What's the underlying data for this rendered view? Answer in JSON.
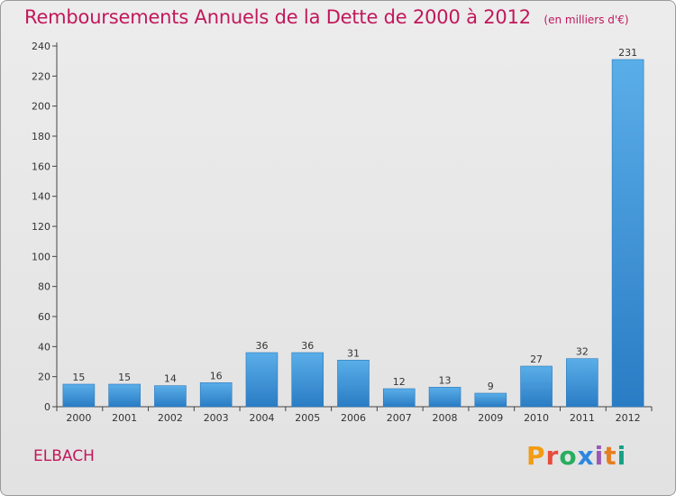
{
  "header": {
    "title": "Remboursements Annuels de la Dette de 2000 à 2012",
    "unit": "(en milliers d'€)"
  },
  "commune": "ELBACH",
  "brand": {
    "text": "Proxiti",
    "colors": [
      "#f39c12",
      "#e74c3c",
      "#27ae60",
      "#2e86de",
      "#9b59b6",
      "#e67e22",
      "#16a085"
    ]
  },
  "colors": {
    "bar_light": "#5aaee8",
    "bar_dark": "#2a7cc4",
    "title": "#c2185b",
    "grid": "#c8c8c8"
  },
  "chart_data": {
    "type": "bar",
    "title": "Remboursements Annuels de la Dette de 2000 à 2012",
    "ylabel": "",
    "xlabel": "",
    "categories": [
      "2000",
      "2001",
      "2002",
      "2003",
      "2004",
      "2005",
      "2006",
      "2007",
      "2008",
      "2009",
      "2010",
      "2011",
      "2012"
    ],
    "values": [
      15,
      15,
      14,
      16,
      36,
      36,
      31,
      12,
      13,
      9,
      27,
      32,
      231
    ],
    "ylim": [
      0,
      240
    ],
    "yticks": [
      0,
      20,
      40,
      60,
      80,
      100,
      120,
      140,
      160,
      180,
      200,
      220,
      240
    ],
    "grid": false,
    "legend": "none"
  }
}
